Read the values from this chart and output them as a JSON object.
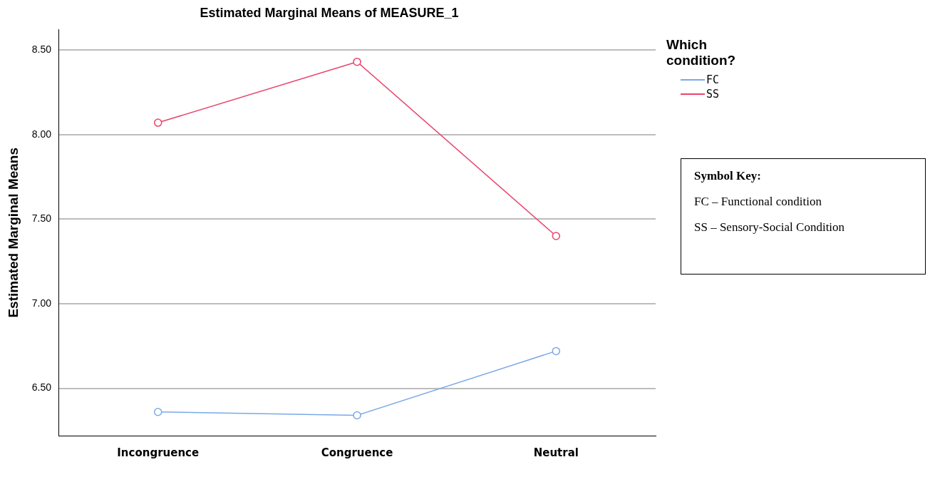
{
  "chart_data": {
    "type": "line",
    "title": "Estimated Marginal Means of MEASURE_1",
    "ylabel": "Estimated Marginal Means",
    "legend_title": "Which condition?",
    "categories": [
      "Incongruence",
      "Congruence",
      "Neutral"
    ],
    "series": [
      {
        "name": "FC",
        "color": "#7aa9e8",
        "values": [
          6.36,
          6.34,
          6.72
        ]
      },
      {
        "name": "SS",
        "color": "#e8456b",
        "values": [
          8.07,
          8.43,
          7.4
        ]
      }
    ],
    "ylim": [
      6.22,
      8.62
    ],
    "yticks": [
      {
        "value": 6.5,
        "label": "6.50"
      },
      {
        "value": 7,
        "label": "7.00"
      },
      {
        "value": 7.5,
        "label": "7.50"
      },
      {
        "value": 8,
        "label": "8.00"
      },
      {
        "value": 8.5,
        "label": "8.50"
      }
    ],
    "grid": "y",
    "legend": "top right",
    "marker": "circle",
    "line_style": "solid",
    "annotations": [
      "Symbol Key:",
      "FC – Functional condition",
      "SS – Sensory-Social Condition"
    ]
  }
}
